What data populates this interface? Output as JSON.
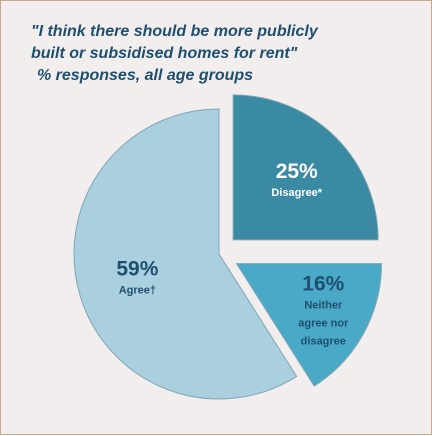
{
  "chart_data": {
    "type": "pie",
    "title_line1": "\"I think there should be more publicly",
    "title_line2": "built or subsidised homes for rent\"",
    "subtitle": "% responses, all age groups",
    "slices": [
      {
        "pct_label": "25%",
        "label_lines": [
          "Disagree*"
        ],
        "value": 25,
        "color": "#3a8aa3",
        "text_color": "#ffffff"
      },
      {
        "pct_label": "16%",
        "label_lines": [
          "Neither",
          "agree nor",
          "disagree"
        ],
        "value": 16,
        "color": "#4aa9c6",
        "text_color": "#1e4f6e"
      },
      {
        "pct_label": "59%",
        "label_lines": [
          "Agree†"
        ],
        "value": 59,
        "color": "#aacfdf",
        "text_color": "#1e4f6e"
      }
    ],
    "legend": "none"
  }
}
